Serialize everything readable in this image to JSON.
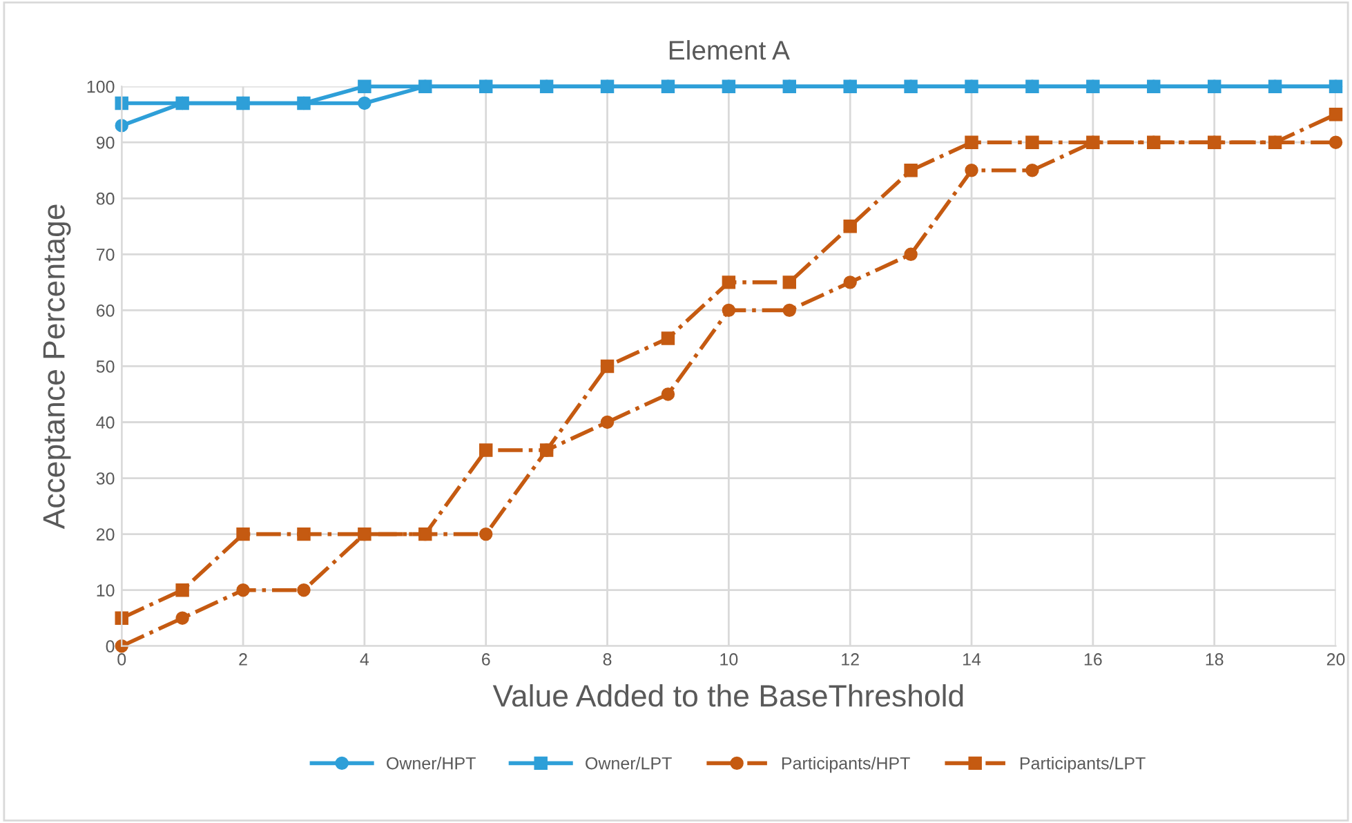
{
  "chart_data": {
    "type": "line",
    "title": "Element A",
    "xlabel": "Value Added to the BaseThreshold",
    "ylabel": "Acceptance Percentage",
    "x": [
      0,
      1,
      2,
      3,
      4,
      5,
      6,
      7,
      8,
      9,
      10,
      11,
      12,
      13,
      14,
      15,
      16,
      17,
      18,
      19,
      20
    ],
    "series": [
      {
        "name": "Owner/HPT",
        "color": "#2e9fd8",
        "marker": "circle",
        "line_style": "solid",
        "values": [
          93,
          97,
          97,
          97,
          97,
          100,
          100,
          100,
          100,
          100,
          100,
          100,
          100,
          100,
          100,
          100,
          100,
          100,
          100,
          100,
          100
        ]
      },
      {
        "name": "Owner/LPT",
        "color": "#2e9fd8",
        "marker": "square",
        "line_style": "solid",
        "values": [
          97,
          97,
          97,
          97,
          100,
          100,
          100,
          100,
          100,
          100,
          100,
          100,
          100,
          100,
          100,
          100,
          100,
          100,
          100,
          100,
          100
        ]
      },
      {
        "name": "Participants/HPT",
        "color": "#c55a11",
        "marker": "circle",
        "line_style": "dashed",
        "values": [
          0,
          5,
          10,
          10,
          20,
          20,
          20,
          35,
          40,
          45,
          60,
          60,
          65,
          70,
          85,
          85,
          90,
          90,
          90,
          90,
          90
        ]
      },
      {
        "name": "Participants/LPT",
        "color": "#c55a11",
        "marker": "square",
        "line_style": "dashed",
        "values": [
          5,
          10,
          20,
          20,
          20,
          20,
          35,
          35,
          50,
          55,
          65,
          65,
          75,
          85,
          90,
          90,
          90,
          90,
          90,
          90,
          95
        ]
      }
    ],
    "xlim": [
      0,
      20
    ],
    "xticks": [
      0,
      2,
      4,
      6,
      8,
      10,
      12,
      14,
      16,
      18,
      20
    ],
    "ylim": [
      0,
      100
    ],
    "yticks": [
      0,
      10,
      20,
      30,
      40,
      50,
      60,
      70,
      80,
      90,
      100
    ],
    "grid": true,
    "legend": "bottom"
  }
}
